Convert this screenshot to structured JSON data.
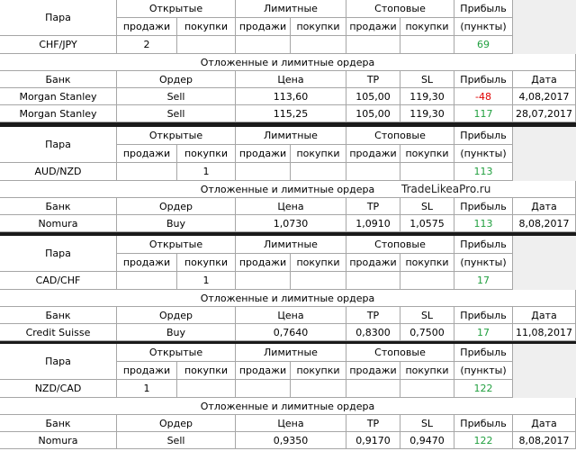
{
  "blocks": [
    {
      "header": {
        "pair": "Пара",
        "open": "Открытые",
        "limit": "Лимитные",
        "stop": "Стоповые",
        "profit": "Прибыль",
        "profit_unit": "(пункты)",
        "sub": [
          "продажи",
          "покупки",
          "продажи",
          "покупки",
          "продажи",
          "покупки"
        ]
      },
      "position": {
        "pair": "CHF/JPY",
        "open_sell": "2",
        "profit": "69"
      },
      "pending_title": "Отложенные и лимитные ордера",
      "orders_header": {
        "bank": "Банк",
        "order": "Ордер",
        "price": "Цена",
        "tp": "TP",
        "sl": "SL",
        "profit": "Прибыль",
        "date": "Дата"
      },
      "orders": [
        {
          "bank": "Morgan Stanley",
          "order": "Sell",
          "price": "113,60",
          "tp": "105,00",
          "sl": "119,30",
          "profit": "-48",
          "date": "4,08,2017"
        },
        {
          "bank": "Morgan Stanley",
          "order": "Sell",
          "price": "115,25",
          "tp": "105,00",
          "sl": "119,30",
          "profit": "117",
          "date": "28,07,2017"
        }
      ]
    },
    {
      "header": {
        "pair": "Пара",
        "open": "Открытые",
        "limit": "Лимитные",
        "stop": "Стоповые",
        "profit": "Прибыль",
        "profit_unit": "(пункты)",
        "sub": [
          "продажи",
          "покупки",
          "продажи",
          "покупки",
          "продажи",
          "покупки"
        ]
      },
      "position": {
        "pair": "AUD/NZD",
        "open_buy": "1",
        "profit": "113"
      },
      "pending_title": "Отложенные и лимитные ордера",
      "watermark": "TradeLikeaPro.ru",
      "orders_header": {
        "bank": "Банк",
        "order": "Ордер",
        "price": "Цена",
        "tp": "TP",
        "sl": "SL",
        "profit": "Прибыль",
        "date": "Дата"
      },
      "orders": [
        {
          "bank": "Nomura",
          "order": "Buy",
          "price": "1,0730",
          "tp": "1,0910",
          "sl": "1,0575",
          "profit": "113",
          "date": "8,08,2017"
        }
      ]
    },
    {
      "header": {
        "pair": "Пара",
        "open": "Открытые",
        "limit": "Лимитные",
        "stop": "Стоповые",
        "profit": "Прибыль",
        "profit_unit": "(пункты)",
        "sub": [
          "продажи",
          "покупки",
          "продажи",
          "покупки",
          "продажи",
          "покупки"
        ]
      },
      "position": {
        "pair": "CAD/CHF",
        "open_buy": "1",
        "profit": "17"
      },
      "pending_title": "Отложенные и лимитные ордера",
      "orders_header": {
        "bank": "Банк",
        "order": "Ордер",
        "price": "Цена",
        "tp": "TP",
        "sl": "SL",
        "profit": "Прибыль",
        "date": "Дата"
      },
      "orders": [
        {
          "bank": "Credit Suisse",
          "order": "Buy",
          "price": "0,7640",
          "tp": "0,8300",
          "sl": "0,7500",
          "profit": "17",
          "date": "11,08,2017"
        }
      ]
    },
    {
      "header": {
        "pair": "Пара",
        "open": "Открытые",
        "limit": "Лимитные",
        "stop": "Стоповые",
        "profit": "Прибыль",
        "profit_unit": "(пункты)",
        "sub": [
          "продажи",
          "покупки",
          "продажи",
          "покупки",
          "продажи",
          "покупки"
        ]
      },
      "position": {
        "pair": "NZD/CAD",
        "open_sell": "1",
        "profit": "122"
      },
      "pending_title": "Отложенные и лимитные ордера",
      "orders_header": {
        "bank": "Банк",
        "order": "Ордер",
        "price": "Цена",
        "tp": "TP",
        "sl": "SL",
        "profit": "Прибыль",
        "date": "Дата"
      },
      "orders": [
        {
          "bank": "Nomura",
          "order": "Sell",
          "price": "0,9350",
          "tp": "0,9170",
          "sl": "0,9470",
          "profit": "122",
          "date": "8,08,2017"
        }
      ]
    }
  ]
}
